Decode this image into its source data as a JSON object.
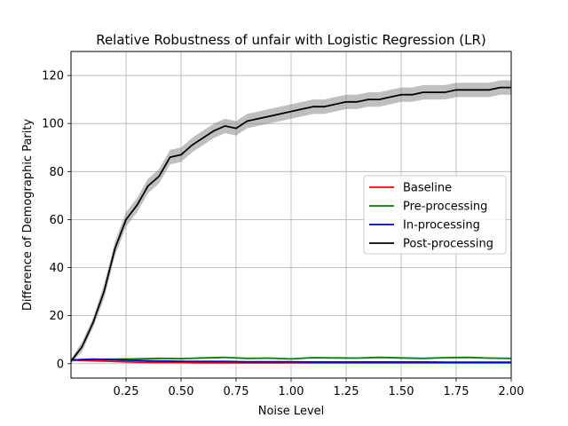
{
  "chart_data": {
    "type": "line",
    "title": "Relative Robustness of unfair with Logistic Regression (LR)",
    "xlabel": "Noise Level",
    "ylabel": "Difference of Demographic Parity",
    "xlim": [
      0.0,
      2.0
    ],
    "ylim": [
      -6,
      130
    ],
    "xticks": [
      0.25,
      0.5,
      0.75,
      1.0,
      1.25,
      1.5,
      1.75,
      2.0
    ],
    "xtick_labels": [
      "0.25",
      "0.50",
      "0.75",
      "1.00",
      "1.25",
      "1.50",
      "1.75",
      "2.00"
    ],
    "yticks": [
      0,
      20,
      40,
      60,
      80,
      100,
      120
    ],
    "ytick_labels": [
      "0",
      "20",
      "40",
      "60",
      "80",
      "100",
      "120"
    ],
    "grid": true,
    "legend_position": "center-right",
    "series": [
      {
        "name": "Baseline",
        "color": "#ff0000",
        "x": [
          0.0,
          0.1,
          0.2,
          0.3,
          0.4,
          0.5,
          0.6,
          0.7,
          0.8,
          0.9,
          1.0,
          1.1,
          1.2,
          1.3,
          1.4,
          1.5,
          1.6,
          1.7,
          1.8,
          1.9,
          2.0
        ],
        "y": [
          1.5,
          1.2,
          0.9,
          0.6,
          0.5,
          0.5,
          0.4,
          0.4,
          0.4,
          0.4,
          0.4,
          0.4,
          0.4,
          0.4,
          0.4,
          0.4,
          0.4,
          0.4,
          0.4,
          0.4,
          0.4
        ]
      },
      {
        "name": "Pre-processing",
        "color": "#008000",
        "x": [
          0.0,
          0.1,
          0.2,
          0.3,
          0.4,
          0.5,
          0.6,
          0.7,
          0.8,
          0.9,
          1.0,
          1.1,
          1.2,
          1.3,
          1.4,
          1.5,
          1.6,
          1.7,
          1.8,
          1.9,
          2.0
        ],
        "y": [
          1.5,
          1.8,
          1.9,
          2.0,
          2.2,
          2.1,
          2.4,
          2.6,
          2.2,
          2.3,
          2.0,
          2.5,
          2.4,
          2.3,
          2.6,
          2.4,
          2.2,
          2.5,
          2.6,
          2.3,
          2.2
        ]
      },
      {
        "name": "In-processing",
        "color": "#0000cc",
        "x": [
          0.0,
          0.1,
          0.2,
          0.3,
          0.4,
          0.5,
          0.6,
          0.7,
          0.8,
          0.9,
          1.0,
          1.1,
          1.2,
          1.3,
          1.4,
          1.5,
          1.6,
          1.7,
          1.8,
          1.9,
          2.0
        ],
        "y": [
          1.5,
          1.9,
          1.6,
          1.3,
          1.1,
          1.0,
          0.9,
          0.9,
          0.8,
          0.8,
          0.8,
          0.7,
          0.7,
          0.7,
          0.7,
          0.7,
          0.7,
          0.6,
          0.6,
          0.6,
          0.6
        ]
      },
      {
        "name": "Post-processing",
        "color": "#000000",
        "band_color": "#808080",
        "x": [
          0.0,
          0.05,
          0.1,
          0.15,
          0.2,
          0.25,
          0.3,
          0.35,
          0.4,
          0.45,
          0.5,
          0.55,
          0.6,
          0.65,
          0.7,
          0.75,
          0.8,
          0.85,
          0.9,
          0.95,
          1.0,
          1.05,
          1.1,
          1.15,
          1.2,
          1.25,
          1.3,
          1.35,
          1.4,
          1.45,
          1.5,
          1.55,
          1.6,
          1.65,
          1.7,
          1.75,
          1.8,
          1.85,
          1.9,
          1.95,
          2.0
        ],
        "y": [
          1,
          7,
          17,
          30,
          48,
          60,
          66,
          74,
          78,
          86,
          87,
          91,
          94,
          97,
          99,
          98,
          101,
          102,
          103,
          104,
          105,
          106,
          107,
          107,
          108,
          109,
          109,
          110,
          110,
          111,
          112,
          112,
          113,
          113,
          113,
          114,
          114,
          114,
          114,
          115,
          115
        ],
        "y_lower": [
          0,
          5,
          15,
          27,
          45,
          57,
          63,
          71,
          75,
          83,
          84,
          88,
          91,
          94,
          96,
          95,
          98,
          99,
          100,
          101,
          102,
          103,
          104,
          104,
          105,
          106,
          106,
          107,
          107,
          108,
          109,
          109,
          110,
          110,
          110,
          111,
          111,
          111,
          111,
          112,
          112
        ],
        "y_upper": [
          2,
          9,
          19,
          33,
          51,
          63,
          69,
          77,
          81,
          89,
          90,
          94,
          97,
          100,
          102,
          101,
          104,
          105,
          106,
          107,
          108,
          109,
          110,
          110,
          111,
          112,
          112,
          113,
          113,
          114,
          115,
          115,
          116,
          116,
          116,
          117,
          117,
          117,
          117,
          118,
          118
        ]
      }
    ]
  }
}
